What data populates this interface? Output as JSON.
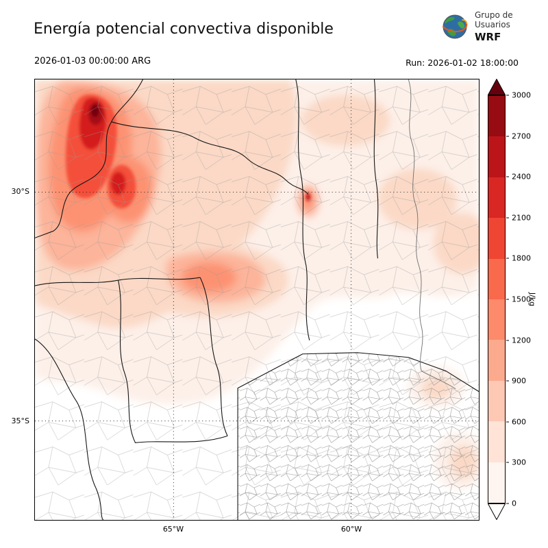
{
  "header": {
    "title": "Energía potencial convectiva disponible",
    "valid_time": "2026-01-03 00:00:00 ARG",
    "run_time": "Run: 2026-01-02 18:00:00"
  },
  "logo": {
    "org_line1": "Grupo de",
    "org_line2": "Usuarios",
    "model": "WRF"
  },
  "map": {
    "lat_labels": [
      "30°S",
      "35°S"
    ],
    "lon_labels": [
      "65°W",
      "60°W"
    ]
  },
  "colorbar": {
    "unit": "J/kg",
    "tick_labels": [
      "3000",
      "2700",
      "2400",
      "2100",
      "1800",
      "1500",
      "1200",
      "900",
      "600",
      "300",
      "0"
    ],
    "segment_colors_top_to_bottom": [
      "#970b13",
      "#bb151a",
      "#d92723",
      "#ef4533",
      "#f9694c",
      "#fc8a6b",
      "#fcaa8e",
      "#fdc9b4",
      "#fee3d6",
      "#fff5f0"
    ],
    "over_color": "#67000d",
    "under_color": "#ffffff"
  },
  "chart_data": {
    "type": "heatmap",
    "title": "Energía potencial convectiva disponible",
    "units": "J/kg",
    "levels": [
      0,
      300,
      600,
      900,
      1200,
      1500,
      1800,
      2100,
      2400,
      2700,
      3000
    ],
    "colormap": "Reds",
    "valid_time": "2026-01-03 00:00:00 ARG",
    "run_time": "2026-01-02 18:00:00",
    "lat_ticks": [
      "30°S",
      "35°S"
    ],
    "lon_ticks": [
      "65°W",
      "60°W"
    ],
    "field_summary": "CAPE shading with maximum band 2700-3000 J/kg in the northwest of the domain, moderate 600-1500 J/kg band across the center-north, near 0 in the south"
  }
}
